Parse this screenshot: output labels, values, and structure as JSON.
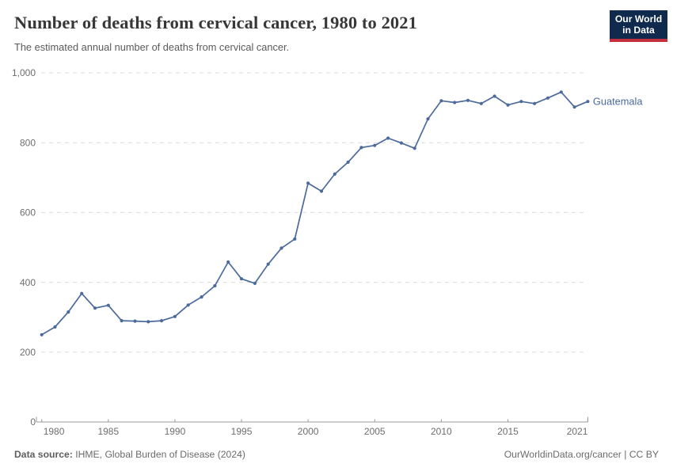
{
  "header": {
    "title": "Number of deaths from cervical cancer, 1980 to 2021",
    "subtitle": "The estimated annual number of deaths from cervical cancer."
  },
  "logo": {
    "line1": "Our World",
    "line2": "in Data",
    "bg_color": "#102a4e",
    "accent_color": "#c5303e"
  },
  "chart_data": {
    "type": "line",
    "title": "Number of deaths from cervical cancer, 1980 to 2021",
    "xlabel": "",
    "ylabel": "",
    "x": [
      1980,
      1981,
      1982,
      1983,
      1984,
      1985,
      1986,
      1987,
      1988,
      1989,
      1990,
      1991,
      1992,
      1993,
      1994,
      1995,
      1996,
      1997,
      1998,
      1999,
      2000,
      2001,
      2002,
      2003,
      2004,
      2005,
      2006,
      2007,
      2008,
      2009,
      2010,
      2011,
      2012,
      2013,
      2014,
      2015,
      2016,
      2017,
      2018,
      2019,
      2020,
      2021
    ],
    "series": [
      {
        "name": "Guatemala",
        "color": "#4c6a9c",
        "values": [
          250,
          272,
          315,
          368,
          326,
          334,
          290,
          289,
          287,
          290,
          302,
          335,
          358,
          390,
          458,
          410,
          397,
          452,
          498,
          524,
          684,
          661,
          710,
          744,
          786,
          792,
          813,
          799,
          784,
          868,
          920,
          915,
          921,
          912,
          933,
          908,
          918,
          912,
          928,
          945,
          902,
          918
        ]
      }
    ],
    "ylim": [
      0,
      1000
    ],
    "yticks": [
      0,
      200,
      400,
      600,
      800,
      1000
    ],
    "xticks": [
      1980,
      1985,
      1990,
      1995,
      2000,
      2005,
      2010,
      2015,
      2021
    ],
    "grid": "horizontal-dashed",
    "legend_position": "end-of-line-label",
    "colors": {
      "grid": "#dcdcdc",
      "axis": "#9a9a9a",
      "tick_text": "#6e6e6e"
    }
  },
  "footer": {
    "source_label": "Data source:",
    "source_value": " IHME, Global Burden of Disease (2024)",
    "right_text": "OurWorldinData.org/cancer | CC BY"
  }
}
